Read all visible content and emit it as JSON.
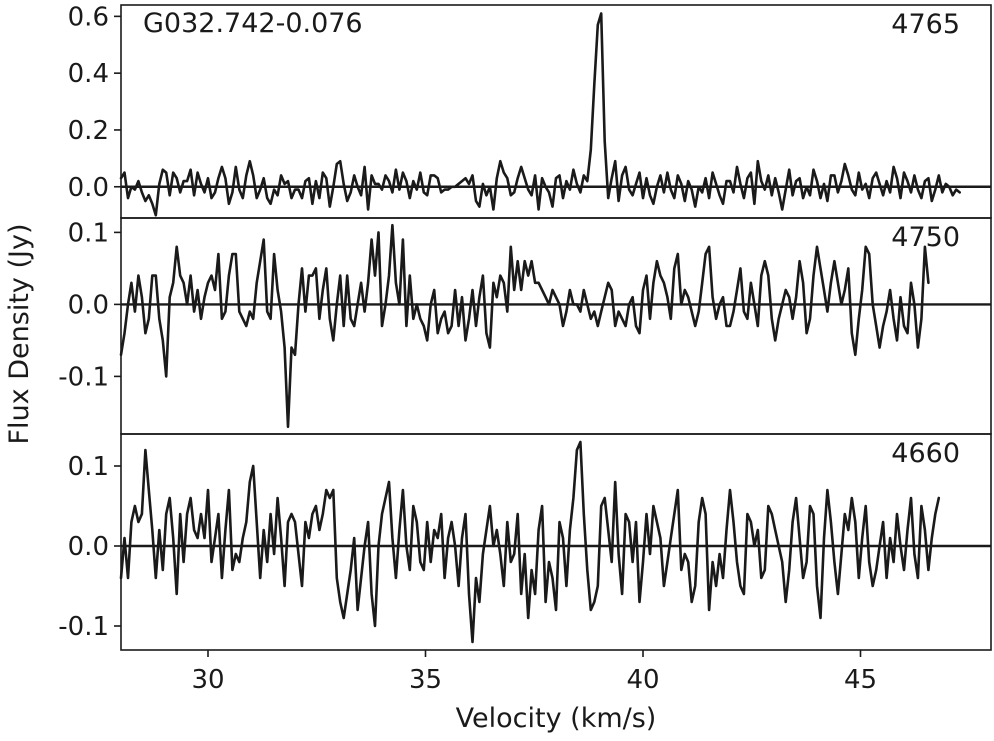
{
  "chart_data": {
    "type": "line",
    "source_label": "G032.742-0.076",
    "xlabel": "Velocity (km/s)",
    "ylabel": "Flux Density (Jy)",
    "xlim": [
      28,
      48
    ],
    "x_ticks": [
      30,
      35,
      40,
      45
    ],
    "x_tick_labels": [
      "30",
      "35",
      "40",
      "45"
    ],
    "panels": [
      {
        "label": "4765",
        "ylim": [
          -0.11,
          0.64
        ],
        "y_ticks": [
          0.0,
          0.2,
          0.4,
          0.6
        ],
        "y_tick_labels": [
          "0.0",
          "0.2",
          "0.4",
          "0.6"
        ],
        "series": [
          {
            "x_start": 28.0,
            "x_step": 0.08,
            "values": [
              0.03,
              0.05,
              -0.04,
              0.0,
              -0.01,
              0.02,
              -0.02,
              -0.05,
              -0.03,
              -0.06,
              -0.1,
              0.01,
              0.06,
              0.05,
              -0.03,
              0.05,
              0.03,
              -0.02,
              0.02,
              0.02,
              0.06,
              -0.03,
              0.05,
              0.01,
              -0.02,
              0.03,
              -0.04,
              -0.02,
              0.03,
              0.07,
              0.03,
              -0.06,
              -0.02,
              0.07,
              -0.01,
              -0.04,
              0.04,
              0.09,
              0.04,
              -0.04,
              -0.01,
              0.03,
              -0.04,
              -0.06,
              -0.01,
              -0.03,
              0.04,
              0.01,
              0.02,
              -0.04,
              -0.01,
              -0.01,
              -0.04,
              0.02,
              0.03,
              -0.06,
              0.02,
              -0.04,
              0.05,
              0.03,
              -0.07,
              0.0,
              0.08,
              0.09,
              0.01,
              -0.05,
              -0.02,
              0.04,
              0.0,
              -0.03,
              0.07,
              -0.08,
              0.04,
              0.01,
              0.01,
              -0.01,
              0.04,
              0.02,
              -0.02,
              0.06,
              -0.01,
              0.05,
              0.02,
              -0.04,
              0.02,
              -0.01,
              0.05,
              -0.02,
              -0.03,
              0.04,
              0.04,
              0.03,
              -0.02,
              -0.01,
              -0.01,
              0.0,
              0.0,
              0.01,
              0.02,
              0.03,
              0.01,
              0.04,
              -0.05,
              -0.07,
              0.01,
              -0.03,
              0.0,
              -0.08,
              0.03,
              0.09,
              0.05,
              0.03,
              -0.03,
              -0.02,
              0.03,
              0.07,
              0.03,
              -0.01,
              -0.03,
              0.04,
              -0.08,
              0.03,
              0.0,
              -0.02,
              -0.07,
              0.03,
              0.04,
              -0.04,
              0.02,
              -0.01,
              0.06,
              0.01,
              -0.02,
              0.04,
              0.02,
              0.13,
              0.36,
              0.57,
              0.61,
              0.16,
              -0.04,
              0.03,
              0.09,
              -0.05,
              0.04,
              0.07,
              -0.01,
              -0.03,
              0.01,
              0.05,
              -0.04,
              0.03,
              -0.03,
              -0.06,
              0.0,
              0.04,
              -0.02,
              0.05,
              -0.01,
              -0.04,
              0.04,
              0.01,
              -0.05,
              0.02,
              -0.01,
              -0.07,
              0.0,
              -0.02,
              0.03,
              -0.04,
              0.05,
              0.01,
              -0.03,
              -0.06,
              0.02,
              0.02,
              -0.02,
              0.07,
              0.01,
              -0.04,
              0.03,
              0.05,
              -0.06,
              0.09,
              0.02,
              -0.01,
              0.04,
              -0.03,
              0.03,
              -0.02,
              -0.08,
              -0.01,
              0.06,
              -0.03,
              0.02,
              0.03,
              -0.04,
              0.0,
              -0.03,
              0.06,
              0.02,
              -0.04,
              0.01,
              -0.05,
              0.04,
              0.04,
              -0.02,
              0.02,
              0.08,
              0.04,
              -0.01,
              -0.03,
              0.05,
              -0.01,
              0.01,
              -0.04,
              0.03,
              0.05,
              0.01,
              -0.03,
              0.02,
              -0.02,
              0.07,
              0.03,
              -0.04,
              0.05,
              0.02,
              -0.02,
              0.04,
              -0.01,
              -0.04,
              0.02,
              0.03,
              -0.05,
              -0.01,
              0.04,
              -0.02,
              0.01,
              0.0,
              -0.03,
              -0.01,
              -0.02
            ]
          }
        ]
      },
      {
        "label": "4750",
        "ylim": [
          -0.18,
          0.12
        ],
        "y_ticks": [
          -0.1,
          0.0,
          0.1
        ],
        "y_tick_labels": [
          "-0.1",
          "0.0",
          "0.1"
        ],
        "series": [
          {
            "x_start": 28.0,
            "x_step": 0.08,
            "values": [
              -0.07,
              -0.04,
              0.0,
              0.03,
              -0.01,
              0.04,
              0.01,
              -0.04,
              -0.02,
              0.04,
              0.04,
              -0.02,
              -0.05,
              -0.1,
              0.01,
              0.03,
              0.08,
              0.04,
              0.03,
              0.0,
              0.04,
              -0.01,
              0.02,
              -0.02,
              0.01,
              0.03,
              0.04,
              0.02,
              0.07,
              -0.02,
              -0.01,
              0.04,
              0.07,
              0.07,
              -0.01,
              -0.02,
              -0.03,
              -0.01,
              -0.02,
              0.03,
              0.06,
              0.09,
              -0.01,
              -0.02,
              0.07,
              0.02,
              -0.01,
              -0.06,
              -0.17,
              -0.06,
              -0.07,
              0.0,
              0.05,
              -0.01,
              0.04,
              0.04,
              0.05,
              -0.02,
              0.02,
              0.05,
              -0.02,
              -0.05,
              0.0,
              0.04,
              -0.03,
              0.04,
              -0.02,
              -0.03,
              0.0,
              0.03,
              -0.01,
              0.03,
              0.09,
              0.04,
              0.1,
              -0.03,
              0.0,
              0.04,
              0.11,
              0.03,
              0.0,
              0.09,
              -0.03,
              0.04,
              -0.02,
              0.0,
              -0.02,
              -0.03,
              -0.05,
              0.0,
              0.02,
              -0.04,
              -0.02,
              -0.01,
              -0.04,
              -0.03,
              0.02,
              -0.03,
              0.01,
              -0.05,
              -0.02,
              0.02,
              -0.03,
              0.01,
              0.04,
              -0.04,
              -0.06,
              0.03,
              0.01,
              0.04,
              0.03,
              -0.01,
              0.08,
              0.02,
              0.06,
              0.02,
              0.06,
              0.04,
              0.06,
              0.03,
              0.03,
              0.02,
              0.01,
              0.0,
              0.02,
              0.01,
              0.0,
              -0.03,
              -0.01,
              0.02,
              0.0,
              0.0,
              -0.01,
              0.02,
              0.0,
              -0.02,
              -0.01,
              -0.03,
              -0.01,
              0.01,
              0.03,
              0.02,
              -0.03,
              -0.01,
              -0.02,
              -0.03,
              0.0,
              0.01,
              -0.03,
              -0.04,
              0.02,
              0.04,
              -0.02,
              0.03,
              0.06,
              0.04,
              0.03,
              0.01,
              -0.02,
              0.05,
              0.07,
              0.0,
              0.02,
              0.01,
              -0.01,
              -0.03,
              -0.01,
              0.03,
              0.07,
              0.08,
              0.01,
              -0.02,
              0.0,
              0.01,
              -0.03,
              -0.03,
              -0.01,
              0.02,
              0.05,
              -0.01,
              -0.02,
              0.03,
              0.0,
              -0.03,
              0.04,
              0.06,
              0.04,
              -0.02,
              -0.05,
              -0.02,
              0.0,
              0.02,
              0.01,
              -0.02,
              0.01,
              0.06,
              0.03,
              -0.04,
              -0.02,
              0.04,
              0.08,
              0.05,
              0.02,
              -0.01,
              0.03,
              0.06,
              0.03,
              0.0,
              0.02,
              0.05,
              -0.04,
              -0.07,
              -0.02,
              0.02,
              0.08,
              0.07,
              0.0,
              -0.03,
              -0.06,
              -0.03,
              -0.01,
              0.02,
              -0.02,
              -0.05,
              0.01,
              -0.03,
              -0.04,
              0.03,
              0.0,
              -0.06,
              -0.02,
              0.08,
              0.03
            ]
          }
        ]
      },
      {
        "label": "4660",
        "ylim": [
          -0.13,
          0.14
        ],
        "y_ticks": [
          -0.1,
          0.0,
          0.1
        ],
        "y_tick_labels": [
          "-0.1",
          "0.0",
          "0.1"
        ],
        "series": [
          {
            "x_start": 28.0,
            "x_step": 0.08,
            "values": [
              -0.04,
              0.01,
              -0.04,
              0.03,
              0.05,
              0.03,
              0.04,
              0.12,
              0.07,
              0.02,
              -0.04,
              0.02,
              -0.03,
              0.04,
              0.06,
              0.01,
              -0.06,
              0.04,
              -0.02,
              0.04,
              0.06,
              0.02,
              0.01,
              0.04,
              0.01,
              0.07,
              -0.02,
              0.01,
              0.04,
              -0.04,
              0.02,
              0.07,
              -0.03,
              -0.01,
              -0.02,
              0.01,
              0.03,
              0.08,
              0.1,
              0.03,
              -0.04,
              0.02,
              -0.02,
              0.04,
              -0.01,
              0.06,
              0.01,
              -0.05,
              0.03,
              0.04,
              0.03,
              -0.01,
              -0.05,
              0.03,
              0.01,
              0.04,
              0.05,
              0.02,
              0.04,
              0.07,
              0.06,
              0.07,
              -0.04,
              -0.07,
              -0.09,
              -0.06,
              -0.03,
              0.01,
              -0.08,
              -0.04,
              0.0,
              0.03,
              -0.06,
              -0.1,
              0.0,
              0.04,
              0.06,
              0.08,
              0.01,
              -0.04,
              0.02,
              0.07,
              0.0,
              -0.03,
              0.05,
              0.03,
              -0.02,
              -0.03,
              0.03,
              -0.02,
              0.02,
              0.01,
              0.04,
              -0.04,
              0.01,
              0.03,
              0.0,
              -0.05,
              0.01,
              0.04,
              -0.06,
              -0.12,
              -0.04,
              -0.07,
              -0.01,
              0.02,
              0.05,
              0.0,
              0.02,
              -0.01,
              -0.05,
              0.03,
              -0.02,
              -0.01,
              0.04,
              -0.06,
              -0.01,
              -0.09,
              -0.03,
              -0.06,
              0.02,
              0.05,
              -0.07,
              -0.02,
              -0.04,
              -0.08,
              0.03,
              0.01,
              -0.05,
              0.02,
              0.06,
              0.12,
              0.13,
              0.04,
              -0.03,
              -0.08,
              -0.07,
              -0.05,
              0.05,
              0.06,
              0.02,
              -0.02,
              0.08,
              -0.01,
              -0.06,
              0.04,
              0.03,
              -0.02,
              0.03,
              -0.07,
              -0.02,
              0.04,
              -0.01,
              0.05,
              0.03,
              0.01,
              -0.05,
              -0.02,
              0.01,
              0.04,
              0.07,
              -0.03,
              -0.01,
              -0.02,
              -0.07,
              -0.05,
              0.03,
              0.06,
              0.04,
              -0.08,
              -0.02,
              -0.05,
              -0.01,
              -0.04,
              0.02,
              0.07,
              0.03,
              -0.02,
              -0.05,
              -0.06,
              0.04,
              0.03,
              0.0,
              0.02,
              -0.04,
              -0.03,
              0.05,
              0.04,
              0.02,
              0.0,
              -0.02,
              -0.07,
              -0.03,
              0.03,
              0.06,
              0.01,
              -0.04,
              -0.02,
              0.05,
              0.04,
              -0.05,
              -0.09,
              0.01,
              0.07,
              0.03,
              -0.02,
              -0.06,
              -0.01,
              0.04,
              0.02,
              0.06,
              0.03,
              -0.04,
              0.01,
              0.05,
              -0.02,
              -0.05,
              -0.03,
              0.0,
              0.03,
              -0.04,
              0.01,
              -0.02,
              0.04,
              0.0,
              -0.03,
              0.02,
              0.06,
              -0.01,
              -0.04,
              0.05,
              0.02,
              -0.03,
              0.01,
              0.04,
              0.06
            ]
          }
        ]
      }
    ]
  }
}
